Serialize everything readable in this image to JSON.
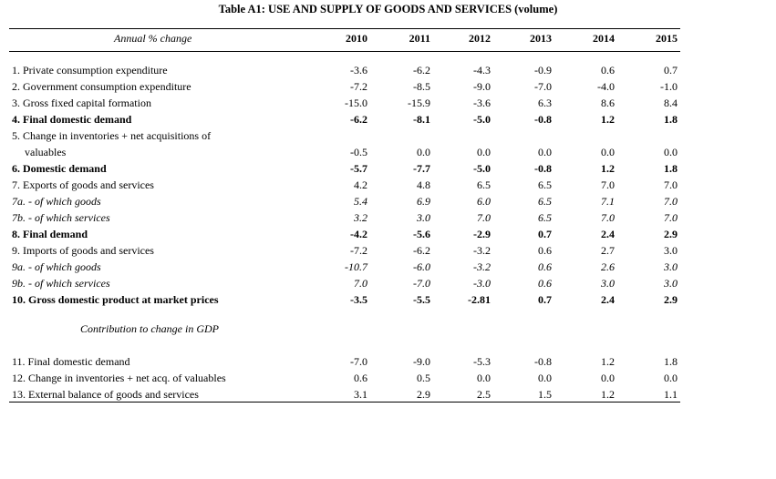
{
  "title": "Table A1: USE AND SUPPLY OF GOODS AND SERVICES (volume)",
  "header": {
    "label": "Annual % change",
    "years": [
      "2010",
      "2011",
      "2012",
      "2013",
      "2014",
      "2015"
    ]
  },
  "section1": [
    {
      "label": "1. Private consumption expenditure",
      "values": [
        "-3.6",
        "-6.2",
        "-4.3",
        "-0.9",
        "0.6",
        "0.7"
      ],
      "style": "normal"
    },
    {
      "label": "2. Government consumption expenditure",
      "values": [
        "-7.2",
        "-8.5",
        "-9.0",
        "-7.0",
        "-4.0",
        "-1.0"
      ],
      "style": "normal"
    },
    {
      "label": "3. Gross fixed capital formation",
      "values": [
        "-15.0",
        "-15.9",
        "-3.6",
        "6.3",
        "8.6",
        "8.4"
      ],
      "style": "normal"
    },
    {
      "label": "4. Final domestic demand",
      "values": [
        "-6.2",
        "-8.1",
        "-5.0",
        "-0.8",
        "1.2",
        "1.8"
      ],
      "style": "bold"
    },
    {
      "label": "5. Change in inventories + net acquisitions of",
      "values": [
        "",
        "",
        "",
        "",
        "",
        ""
      ],
      "style": "normal"
    },
    {
      "label": "valuables",
      "values": [
        "-0.5",
        "0.0",
        "0.0",
        "0.0",
        "0.0",
        "0.0"
      ],
      "style": "indent"
    },
    {
      "label": "6. Domestic demand",
      "values": [
        "-5.7",
        "-7.7",
        "-5.0",
        "-0.8",
        "1.2",
        "1.8"
      ],
      "style": "bold"
    },
    {
      "label": "7. Exports of goods and services",
      "values": [
        "4.2",
        "4.8",
        "6.5",
        "6.5",
        "7.0",
        "7.0"
      ],
      "style": "normal"
    },
    {
      "label": "7a.  - of which goods",
      "values": [
        "5.4",
        "6.9",
        "6.0",
        "6.5",
        "7.1",
        "7.0"
      ],
      "style": "italic"
    },
    {
      "label": "7b.  - of which services",
      "values": [
        "3.2",
        "3.0",
        "7.0",
        "6.5",
        "7.0",
        "7.0"
      ],
      "style": "italic"
    },
    {
      "label": "8. Final demand",
      "values": [
        "-4.2",
        "-5.6",
        "-2.9",
        "0.7",
        "2.4",
        "2.9"
      ],
      "style": "bold"
    },
    {
      "label": "9. Imports of goods and services",
      "values": [
        "-7.2",
        "-6.2",
        "-3.2",
        "0.6",
        "2.7",
        "3.0"
      ],
      "style": "normal"
    },
    {
      "label": "9a.  - of which goods",
      "values": [
        "-10.7",
        "-6.0",
        "-3.2",
        "0.6",
        "2.6",
        "3.0"
      ],
      "style": "italic"
    },
    {
      "label": "9b.  - of which services",
      "values": [
        "7.0",
        "-7.0",
        "-3.0",
        "0.6",
        "3.0",
        "3.0"
      ],
      "style": "italic"
    },
    {
      "label": "10. Gross domestic product at market prices",
      "values": [
        "-3.5",
        "-5.5",
        "-2.81",
        "0.7",
        "2.4",
        "2.9"
      ],
      "style": "bold"
    }
  ],
  "section2_label": "Contribution to change in GDP",
  "section2": [
    {
      "label": "11. Final domestic demand",
      "values": [
        "-7.0",
        "-9.0",
        "-5.3",
        "-0.8",
        "1.2",
        "1.8"
      ],
      "style": "normal"
    },
    {
      "label": "12. Change in inventories + net acq. of valuables",
      "values": [
        "0.6",
        "0.5",
        "0.0",
        "0.0",
        "0.0",
        "0.0"
      ],
      "style": "normal"
    },
    {
      "label": "13. External balance of goods and services",
      "values": [
        "3.1",
        "2.9",
        "2.5",
        "1.5",
        "1.2",
        "1.1"
      ],
      "style": "normal"
    }
  ]
}
